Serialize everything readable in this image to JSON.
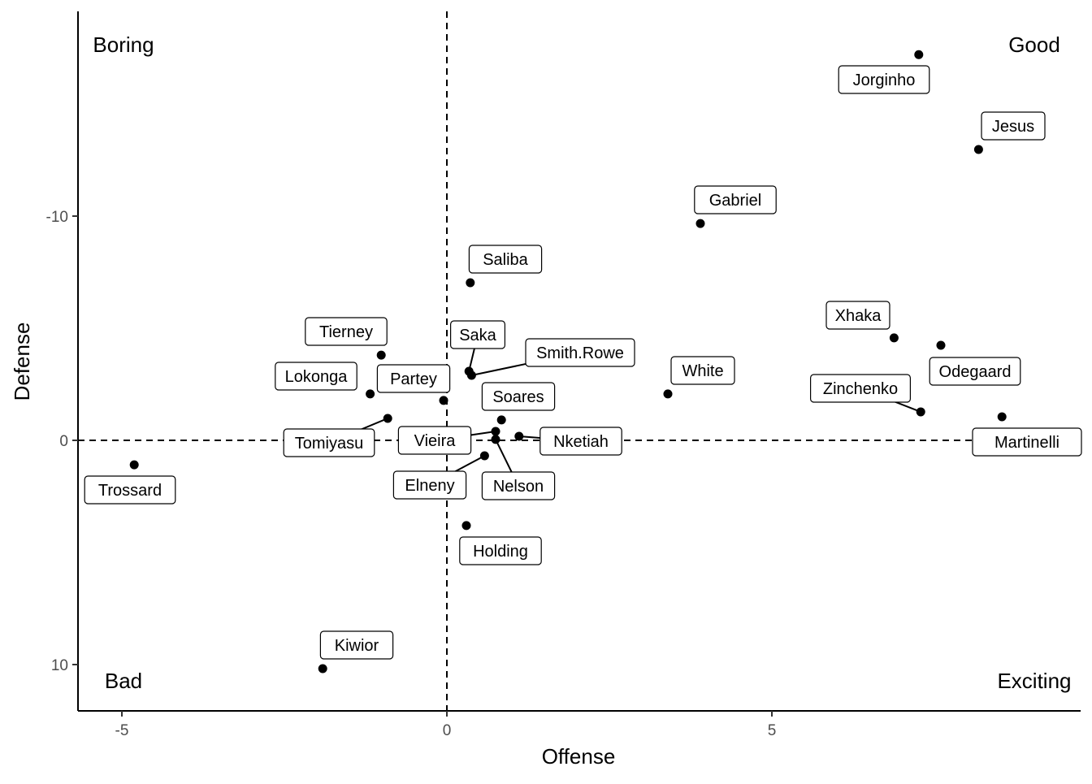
{
  "chart_data": {
    "type": "scatter",
    "title": "",
    "xlabel": "Offense",
    "ylabel": "Defense",
    "xlim": [
      -5.7,
      9.7
    ],
    "ylim": [
      -19.5,
      12
    ],
    "y_reversed": true,
    "grid": false,
    "x_ticks": [
      -5,
      0,
      5
    ],
    "y_ticks": [
      -10,
      0,
      10
    ],
    "x_tick_labels": [
      "-5",
      "0",
      "5"
    ],
    "y_tick_labels": [
      "-10",
      "0",
      "10"
    ],
    "reference_lines": {
      "x": 0,
      "y": 0,
      "style": "dashed"
    },
    "quadrant_labels": {
      "top_left": "Boring",
      "top_right": "Good",
      "bottom_left": "Bad",
      "bottom_right": "Exciting"
    },
    "points": [
      {
        "name": "Jorginho",
        "x": 7.26,
        "y": -17.2
      },
      {
        "name": "Jesus",
        "x": 8.18,
        "y": -12.97
      },
      {
        "name": "Gabriel",
        "x": 3.9,
        "y": -9.67
      },
      {
        "name": "Saliba",
        "x": 0.36,
        "y": -7.03
      },
      {
        "name": "Xhaka",
        "x": 6.88,
        "y": -4.57
      },
      {
        "name": "Odegaard",
        "x": 7.6,
        "y": -4.24
      },
      {
        "name": "Tierney",
        "x": -1.01,
        "y": -3.8
      },
      {
        "name": "Saka",
        "x": 0.34,
        "y": -3.08
      },
      {
        "name": "Smith.Rowe",
        "x": 0.38,
        "y": -2.9
      },
      {
        "name": "White",
        "x": 3.4,
        "y": -2.07
      },
      {
        "name": "Lokonga",
        "x": -1.18,
        "y": -2.07
      },
      {
        "name": "Partey",
        "x": -0.05,
        "y": -1.78
      },
      {
        "name": "Zinchenko",
        "x": 7.29,
        "y": -1.27
      },
      {
        "name": "Martinelli",
        "x": 8.54,
        "y": -1.05
      },
      {
        "name": "Tomiyasu",
        "x": -0.91,
        "y": -0.98
      },
      {
        "name": "Soares",
        "x": 0.84,
        "y": -0.91
      },
      {
        "name": "Vieira",
        "x": 0.75,
        "y": -0.4
      },
      {
        "name": "Nketiah",
        "x": 1.11,
        "y": -0.18
      },
      {
        "name": "Nelson",
        "x": 0.75,
        "y": -0.04
      },
      {
        "name": "Elneny",
        "x": 0.58,
        "y": 0.69
      },
      {
        "name": "Trossard",
        "x": -4.81,
        "y": 1.09
      },
      {
        "name": "Holding",
        "x": 0.3,
        "y": 3.8
      },
      {
        "name": "Kiwior",
        "x": -1.91,
        "y": 10.18
      }
    ]
  }
}
